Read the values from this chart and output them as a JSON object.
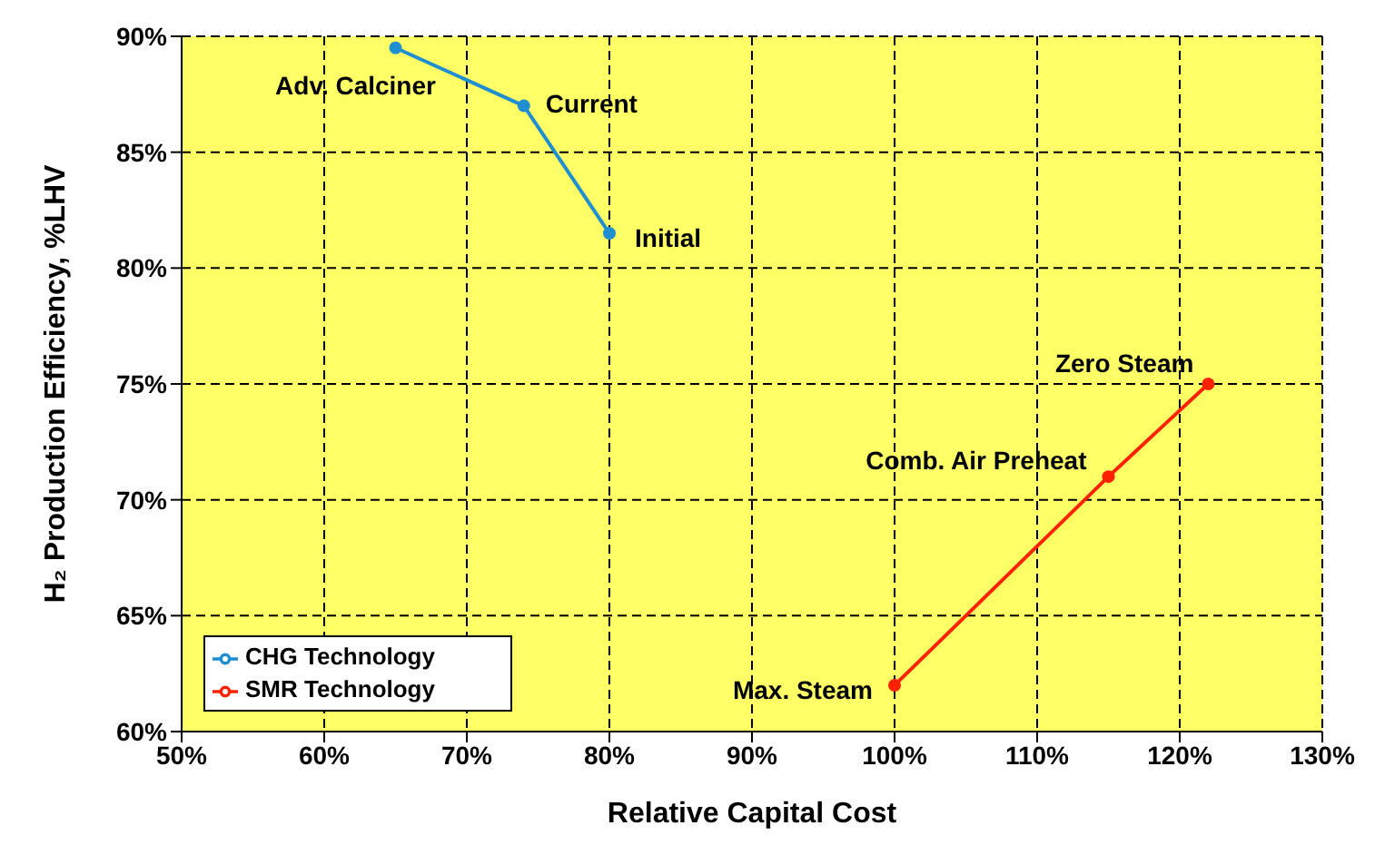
{
  "chart_data": {
    "type": "line",
    "xlabel": "Relative Capital Cost",
    "ylabel": "H₂ Production Efficiency, %LHV",
    "series": [
      {
        "name": "CHG Technology",
        "color": "#1f8fd0",
        "x": [
          65,
          74,
          80
        ],
        "values": [
          89.5,
          87,
          81.5
        ]
      },
      {
        "name": "SMR Technology",
        "color": "#ff2200",
        "x": [
          100,
          115,
          122
        ],
        "values": [
          62,
          71,
          75
        ]
      }
    ],
    "xlim": [
      50,
      130
    ],
    "xticks": [
      {
        "value": 50,
        "label": "50%"
      },
      {
        "value": 60,
        "label": "60%"
      },
      {
        "value": 70,
        "label": "70%"
      },
      {
        "value": 80,
        "label": "80%"
      },
      {
        "value": 90,
        "label": "90%"
      },
      {
        "value": 100,
        "label": "100%"
      },
      {
        "value": 110,
        "label": "110%"
      },
      {
        "value": 120,
        "label": "120%"
      },
      {
        "value": 130,
        "label": "130%"
      }
    ],
    "ylim": [
      60,
      90
    ],
    "yticks": [
      {
        "value": 60,
        "label": "60%"
      },
      {
        "value": 65,
        "label": "65%"
      },
      {
        "value": 70,
        "label": "70%"
      },
      {
        "value": 75,
        "label": "75%"
      },
      {
        "value": 80,
        "label": "80%"
      },
      {
        "value": 85,
        "label": "85%"
      },
      {
        "value": 90,
        "label": "90%"
      }
    ],
    "annotations": [
      {
        "text": "Adv. Calciner",
        "x": 65,
        "y": 89.5
      },
      {
        "text": "Current",
        "x": 74,
        "y": 87
      },
      {
        "text": "Initial",
        "x": 80,
        "y": 81.5
      },
      {
        "text": "Max. Steam",
        "x": 100,
        "y": 62
      },
      {
        "text": "Comb. Air Preheat",
        "x": 115,
        "y": 71
      },
      {
        "text": "Zero Steam",
        "x": 122,
        "y": 75
      }
    ],
    "grid": true,
    "legend": "bottom left",
    "marker": "circle",
    "line_style": "solid"
  }
}
